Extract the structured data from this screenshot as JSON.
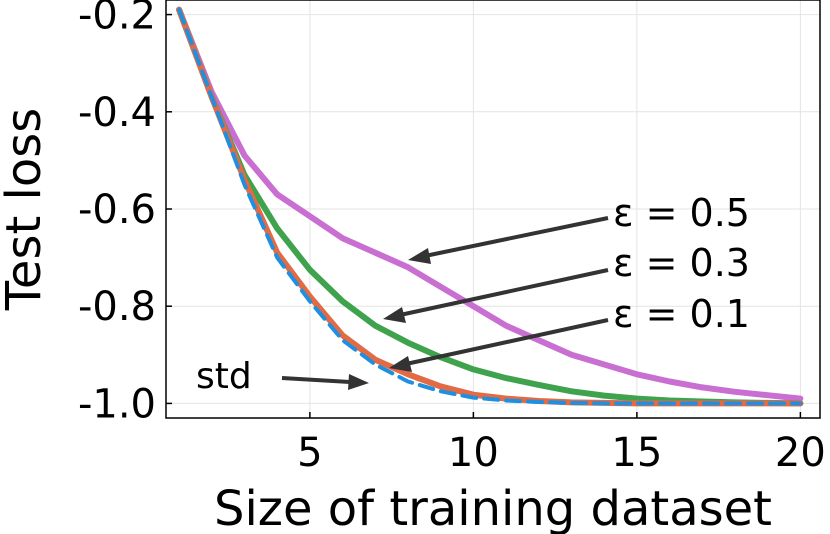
{
  "chart_data": {
    "type": "line",
    "xlabel": "Size of training dataset",
    "ylabel": "Test loss",
    "xlim": [
      0.6,
      20.6
    ],
    "ylim": [
      -1.03,
      -0.17
    ],
    "xticks": [
      5,
      10,
      15,
      20
    ],
    "xtick_labels": [
      "5",
      "10",
      "15",
      "20"
    ],
    "yticks": [
      -1.0,
      -0.8,
      -0.6,
      -0.4,
      -0.2
    ],
    "ytick_labels": [
      "-1.0",
      "-0.8",
      "-0.6",
      "-0.4",
      "-0.2"
    ],
    "grid": true,
    "x": [
      1,
      2,
      3,
      4,
      5,
      6,
      7,
      8,
      9,
      10,
      11,
      12,
      13,
      14,
      15,
      16,
      17,
      18,
      19,
      20
    ],
    "series": [
      {
        "name": "std",
        "color": "#1f8fe0",
        "dashed": true,
        "values": [
          -0.19,
          -0.37,
          -0.55,
          -0.7,
          -0.79,
          -0.87,
          -0.92,
          -0.955,
          -0.975,
          -0.988,
          -0.994,
          -0.997,
          -0.999,
          -1.0,
          -1.0,
          -1.0,
          -1.0,
          -1.0,
          -1.0,
          -1.0
        ]
      },
      {
        "name": "ε = 0.1",
        "color": "#e26a44",
        "dashed": false,
        "values": [
          -0.19,
          -0.37,
          -0.54,
          -0.69,
          -0.78,
          -0.86,
          -0.91,
          -0.94,
          -0.965,
          -0.982,
          -0.99,
          -0.995,
          -0.998,
          -0.999,
          -1.0,
          -1.0,
          -1.0,
          -1.0,
          -1.0,
          -1.0
        ]
      },
      {
        "name": "ε = 0.3",
        "color": "#3fa34d",
        "dashed": false,
        "values": [
          -0.19,
          -0.37,
          -0.53,
          -0.64,
          -0.725,
          -0.79,
          -0.84,
          -0.875,
          -0.905,
          -0.93,
          -0.948,
          -0.962,
          -0.975,
          -0.984,
          -0.99,
          -0.994,
          -0.996,
          -0.998,
          -0.999,
          -1.0
        ]
      },
      {
        "name": "ε = 0.5",
        "color": "#c86fd1",
        "dashed": false,
        "values": [
          -0.19,
          -0.36,
          -0.49,
          -0.57,
          -0.615,
          -0.66,
          -0.69,
          -0.72,
          -0.76,
          -0.8,
          -0.84,
          -0.87,
          -0.9,
          -0.92,
          -0.94,
          -0.955,
          -0.967,
          -0.976,
          -0.983,
          -0.99
        ]
      }
    ],
    "annotations": [
      {
        "label": "ε = 0.5",
        "target_series": "ε = 0.5"
      },
      {
        "label": "ε = 0.3",
        "target_series": "ε = 0.3"
      },
      {
        "label": "ε = 0.1",
        "target_series": "ε = 0.1"
      },
      {
        "label": "std",
        "target_series": "std"
      }
    ]
  }
}
